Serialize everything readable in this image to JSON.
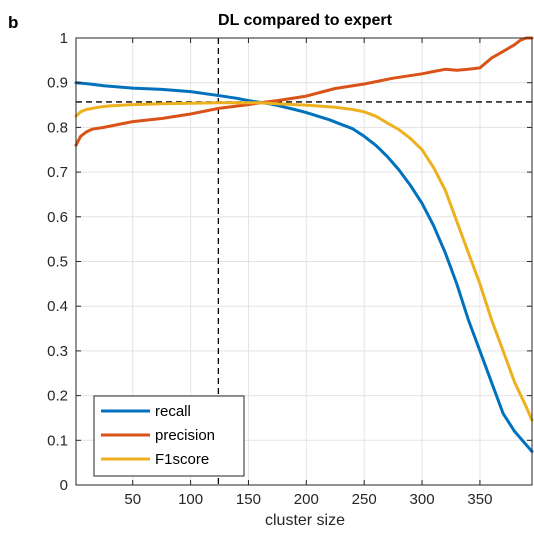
{
  "panel_label": "b",
  "chart_data": {
    "type": "line",
    "title": "DL compared to expert",
    "xlabel": "cluster size",
    "ylabel": "",
    "xlim": [
      1,
      395
    ],
    "ylim": [
      0,
      1
    ],
    "xticks": [
      50,
      100,
      150,
      200,
      250,
      300,
      350
    ],
    "yticks": [
      0,
      0.1,
      0.2,
      0.3,
      0.4,
      0.5,
      0.6,
      0.7,
      0.8,
      0.9,
      1
    ],
    "ytick_labels": [
      "0",
      "0.1",
      "0.2",
      "0.3",
      "0.4",
      "0.5",
      "0.6",
      "0.7",
      "0.8",
      "0.9",
      "1"
    ],
    "grid": true,
    "legend_position": "bottom-left",
    "reference_lines": {
      "x": 124,
      "y": 0.857
    },
    "series": [
      {
        "name": "recall",
        "color": "#0072BD",
        "x": [
          1,
          10,
          25,
          50,
          75,
          100,
          125,
          140,
          150,
          160,
          170,
          180,
          190,
          200,
          210,
          220,
          230,
          240,
          250,
          260,
          270,
          280,
          290,
          300,
          310,
          320,
          330,
          340,
          350,
          360,
          370,
          380,
          390,
          395
        ],
        "y": [
          0.9,
          0.898,
          0.893,
          0.888,
          0.885,
          0.88,
          0.871,
          0.865,
          0.86,
          0.856,
          0.852,
          0.846,
          0.84,
          0.833,
          0.825,
          0.817,
          0.807,
          0.797,
          0.78,
          0.76,
          0.735,
          0.705,
          0.67,
          0.63,
          0.58,
          0.52,
          0.45,
          0.37,
          0.3,
          0.23,
          0.16,
          0.12,
          0.09,
          0.075
        ]
      },
      {
        "name": "precision",
        "color": "#D95319",
        "x": [
          1,
          5,
          10,
          15,
          25,
          50,
          75,
          100,
          125,
          150,
          160,
          175,
          200,
          225,
          250,
          275,
          300,
          310,
          320,
          330,
          340,
          350,
          360,
          370,
          380,
          385,
          390,
          395
        ],
        "y": [
          0.76,
          0.78,
          0.79,
          0.796,
          0.8,
          0.813,
          0.82,
          0.83,
          0.843,
          0.851,
          0.855,
          0.86,
          0.87,
          0.887,
          0.897,
          0.91,
          0.92,
          0.925,
          0.93,
          0.928,
          0.93,
          0.933,
          0.955,
          0.97,
          0.985,
          0.995,
          1.0,
          1.0
        ]
      },
      {
        "name": "F1score",
        "color": "#EDB120",
        "x": [
          1,
          5,
          10,
          20,
          30,
          50,
          75,
          100,
          125,
          150,
          160,
          175,
          200,
          225,
          240,
          250,
          260,
          270,
          280,
          290,
          300,
          310,
          320,
          330,
          340,
          350,
          360,
          370,
          380,
          390,
          395
        ],
        "y": [
          0.825,
          0.835,
          0.84,
          0.845,
          0.848,
          0.851,
          0.853,
          0.854,
          0.855,
          0.855,
          0.855,
          0.853,
          0.85,
          0.845,
          0.84,
          0.835,
          0.825,
          0.81,
          0.795,
          0.775,
          0.75,
          0.71,
          0.66,
          0.59,
          0.52,
          0.45,
          0.37,
          0.3,
          0.23,
          0.175,
          0.145
        ]
      }
    ]
  }
}
